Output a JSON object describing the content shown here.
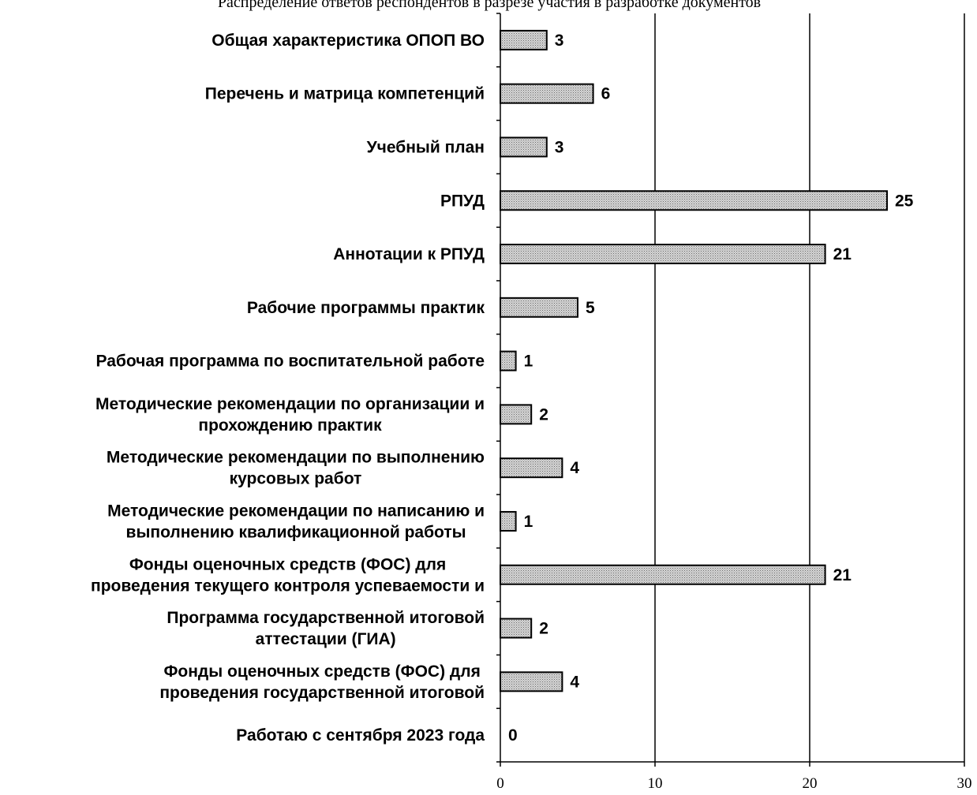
{
  "caption": "Распределение ответов респондентов в разрезе участия в разработке документов",
  "chart_data": {
    "type": "bar",
    "orientation": "horizontal",
    "title": "",
    "xlabel": "",
    "ylabel": "",
    "xlim": [
      0,
      30
    ],
    "x_ticks": [
      0,
      10,
      20,
      30
    ],
    "grid": "vertical major gridlines",
    "legend": "none",
    "bar_fill": "#bdbdbd",
    "bar_stroke": "#000000",
    "categories": [
      [
        "Общая характеристика ОПОП ВО"
      ],
      [
        "Перечень и матрица компетенций"
      ],
      [
        "Учебный план"
      ],
      [
        "РПУД"
      ],
      [
        "Аннотации к РПУД"
      ],
      [
        "Рабочие программы практик"
      ],
      [
        "Рабочая программа по воспитательной работе"
      ],
      [
        "Методические рекомендации по организации и",
        "прохождению практик"
      ],
      [
        "Методические рекомендации по выполнению",
        "курсовых работ"
      ],
      [
        "Методические рекомендации по написанию и",
        "выполнению квалификационной работы"
      ],
      [
        "Фонды оценочных средств (ФОС) для",
        "проведения текущего контроля успеваемости и"
      ],
      [
        "Программа государственной итоговой",
        "аттестации (ГИА)"
      ],
      [
        "Фонды оценочных средств (ФОС) для",
        "проведения государственной итоговой"
      ],
      [
        "Работаю с сентября 2023 года"
      ]
    ],
    "values": [
      3,
      6,
      3,
      25,
      21,
      5,
      1,
      2,
      4,
      1,
      21,
      2,
      4,
      0
    ]
  }
}
